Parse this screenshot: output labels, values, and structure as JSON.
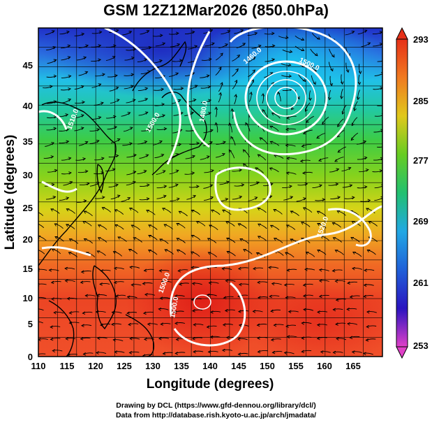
{
  "title": "GSM 12Z12Mar2026 (850.0hPa)",
  "xlabel": "Longitude (degrees)",
  "ylabel": "Latitude (degrees)",
  "x_ticks": [
    "110",
    "115",
    "120",
    "125",
    "130",
    "135",
    "140",
    "145",
    "150",
    "155",
    "160",
    "165"
  ],
  "y_ticks": [
    "0",
    "5",
    "10",
    "15",
    "20",
    "25",
    "30",
    "35",
    "40",
    "45"
  ],
  "colorbar": {
    "labels": [
      "293",
      "285",
      "277",
      "269",
      "261",
      "253"
    ]
  },
  "contour_labels": [
    "1460.0",
    "1480.0",
    "1500.0",
    "1500.0",
    "1510.0",
    "1520.0",
    "1500.0",
    "1500.0"
  ],
  "credits": {
    "line1": "Drawing by DCL (https://www.gfd-dennou.org/library/dcl/)",
    "line2": "Data from http://database.rish.kyoto-u.ac.jp/arch/jmadata/"
  },
  "chart_data": {
    "type": "heatmap",
    "title": "GSM 12Z12Mar2026 (850.0hPa)",
    "xlabel": "Longitude (degrees)",
    "ylabel": "Latitude (degrees)",
    "xlim": [
      110,
      170
    ],
    "ylim": [
      0,
      50
    ],
    "colorbar_range": [
      253,
      293
    ],
    "colorbar_ticks": [
      293,
      285,
      277,
      269,
      261,
      253
    ],
    "overlays": [
      "geopotential height contours (white)",
      "wind streamlines (black)",
      "coastlines (black)"
    ],
    "contour_levels_labeled": [
      1460.0,
      1480.0,
      1500.0,
      1510.0,
      1520.0
    ],
    "features": [
      {
        "type": "low",
        "lon": 152,
        "lat": 40
      },
      {
        "type": "tropical low",
        "lon": 139,
        "lat": 9
      }
    ]
  }
}
